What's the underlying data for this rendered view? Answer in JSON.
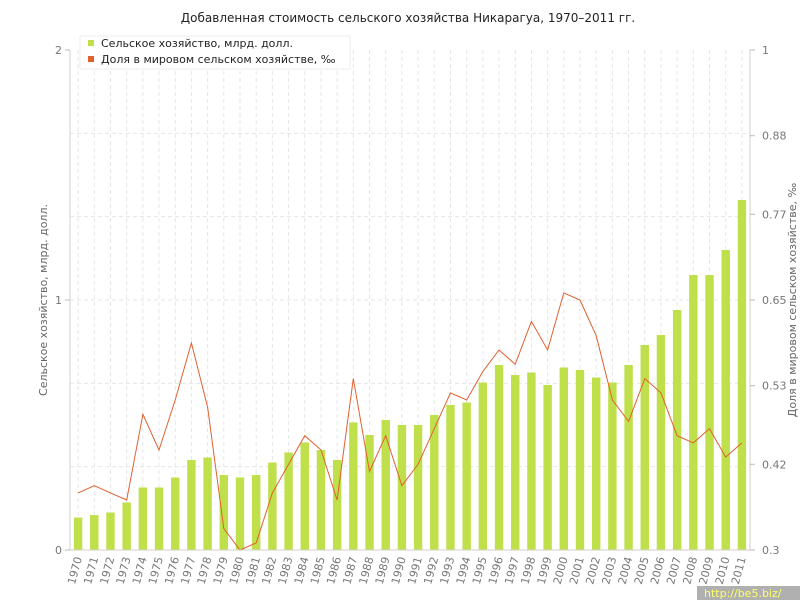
{
  "chart_data": {
    "type": "bar",
    "title": "Добавленная стоимость сельского хозяйства Никарагуа, 1970–2011 гг.",
    "categories": [
      "1970",
      "1971",
      "1972",
      "1973",
      "1974",
      "1975",
      "1976",
      "1977",
      "1978",
      "1979",
      "1980",
      "1981",
      "1982",
      "1983",
      "1984",
      "1985",
      "1986",
      "1987",
      "1988",
      "1989",
      "1990",
      "1991",
      "1992",
      "1993",
      "1994",
      "1995",
      "1996",
      "1997",
      "1998",
      "1999",
      "2000",
      "2001",
      "2002",
      "2003",
      "2004",
      "2005",
      "2006",
      "2007",
      "2008",
      "2009",
      "2010",
      "2011"
    ],
    "ylabel_left": "Сельское хозяйство, млрд. долл.",
    "ylabel_right": "Доля в мировом сельском хозяйстве, ‰",
    "ylim_left": [
      0,
      2
    ],
    "ylim_right": [
      0.3,
      1
    ],
    "yticks_left": [
      "0",
      "1",
      "2"
    ],
    "yticks_right": [
      "0.3",
      "0.42",
      "0.53",
      "0.65",
      "0.77",
      "0.88",
      "1"
    ],
    "grid": true,
    "legend_position": "top-left",
    "series": [
      {
        "name": "Сельское хозяйство, млрд. долл.",
        "kind": "bar",
        "axis": "left",
        "color": "#bfe04a",
        "values": [
          0.13,
          0.14,
          0.15,
          0.19,
          0.25,
          0.25,
          0.29,
          0.36,
          0.37,
          0.3,
          0.29,
          0.3,
          0.35,
          0.39,
          0.43,
          0.4,
          0.36,
          0.51,
          0.46,
          0.52,
          0.5,
          0.5,
          0.54,
          0.58,
          0.59,
          0.67,
          0.74,
          0.7,
          0.71,
          0.66,
          0.73,
          0.72,
          0.69,
          0.67,
          0.74,
          0.82,
          0.86,
          0.96,
          1.1,
          1.1,
          1.2,
          1.4
        ]
      },
      {
        "name": "Доля в мировом сельском хозяйстве, ‰",
        "kind": "line",
        "axis": "right",
        "color": "#e06030",
        "values": [
          0.38,
          0.39,
          0.38,
          0.37,
          0.49,
          0.44,
          0.51,
          0.59,
          0.5,
          0.33,
          0.3,
          0.31,
          0.38,
          0.42,
          0.46,
          0.44,
          0.37,
          0.54,
          0.41,
          0.46,
          0.39,
          0.42,
          0.47,
          0.52,
          0.51,
          0.55,
          0.58,
          0.56,
          0.62,
          0.58,
          0.66,
          0.65,
          0.6,
          0.51,
          0.48,
          0.54,
          0.52,
          0.46,
          0.45,
          0.47,
          0.43,
          0.45
        ]
      }
    ]
  },
  "watermark": "http://be5.biz/"
}
